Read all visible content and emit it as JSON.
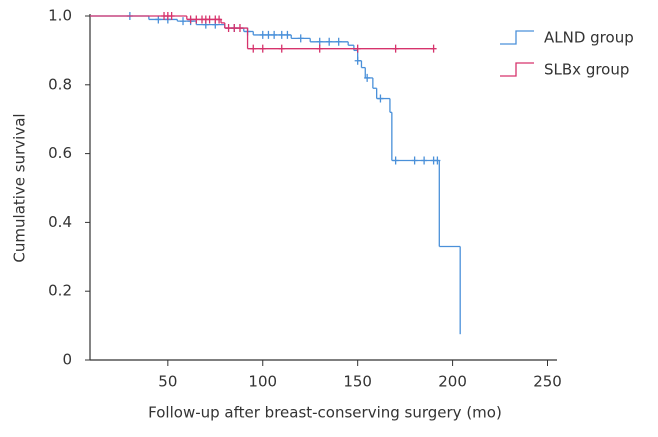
{
  "chart_data": {
    "type": "step",
    "x_label": "Follow-up after breast-conserving surgery (mo)",
    "y_label": "Cumulative survival",
    "xlim": [
      9,
      255
    ],
    "xticks": [
      50,
      100,
      150,
      200,
      250
    ],
    "ylim": [
      0,
      1.0
    ],
    "yticks": [
      0,
      0.2,
      0.4,
      0.6,
      0.8,
      {
        "value": 1.0,
        "label": "1.0"
      }
    ],
    "legend": "top-right",
    "series": [
      {
        "name": "ALND group",
        "color": "#4a90d9",
        "x": [
          9,
          40,
          55,
          65,
          80,
          90,
          95,
          115,
          125,
          145,
          148,
          150,
          152,
          154,
          158,
          160,
          167,
          168,
          193,
          204
        ],
        "values": [
          1.0,
          0.99,
          0.985,
          0.975,
          0.965,
          0.955,
          0.945,
          0.935,
          0.925,
          0.915,
          0.9,
          0.87,
          0.85,
          0.82,
          0.79,
          0.76,
          0.72,
          0.58,
          0.33,
          0.075
        ],
        "censor_x": [
          30,
          45,
          50,
          58,
          62,
          70,
          75,
          85,
          92,
          100,
          103,
          106,
          110,
          113,
          120,
          130,
          135,
          140,
          150,
          155,
          162,
          170,
          180,
          185,
          190,
          192
        ],
        "censor_values": [
          1.0,
          0.99,
          0.99,
          0.985,
          0.985,
          0.975,
          0.975,
          0.965,
          0.955,
          0.945,
          0.945,
          0.945,
          0.945,
          0.945,
          0.935,
          0.925,
          0.925,
          0.925,
          0.87,
          0.82,
          0.76,
          0.58,
          0.58,
          0.58,
          0.58,
          0.58
        ]
      },
      {
        "name": "SLBx group",
        "color": "#d6336c",
        "x": [
          9,
          60,
          78,
          80,
          92,
          190
        ],
        "values": [
          1.0,
          0.99,
          0.98,
          0.965,
          0.905,
          0.905
        ],
        "censor_x": [
          48,
          50,
          52,
          62,
          65,
          68,
          70,
          72,
          75,
          77,
          82,
          85,
          88,
          95,
          100,
          110,
          130,
          150,
          170,
          190
        ],
        "censor_values": [
          1.0,
          1.0,
          1.0,
          0.99,
          0.99,
          0.99,
          0.99,
          0.99,
          0.99,
          0.99,
          0.965,
          0.965,
          0.965,
          0.905,
          0.905,
          0.905,
          0.905,
          0.905,
          0.905,
          0.905
        ]
      }
    ]
  }
}
